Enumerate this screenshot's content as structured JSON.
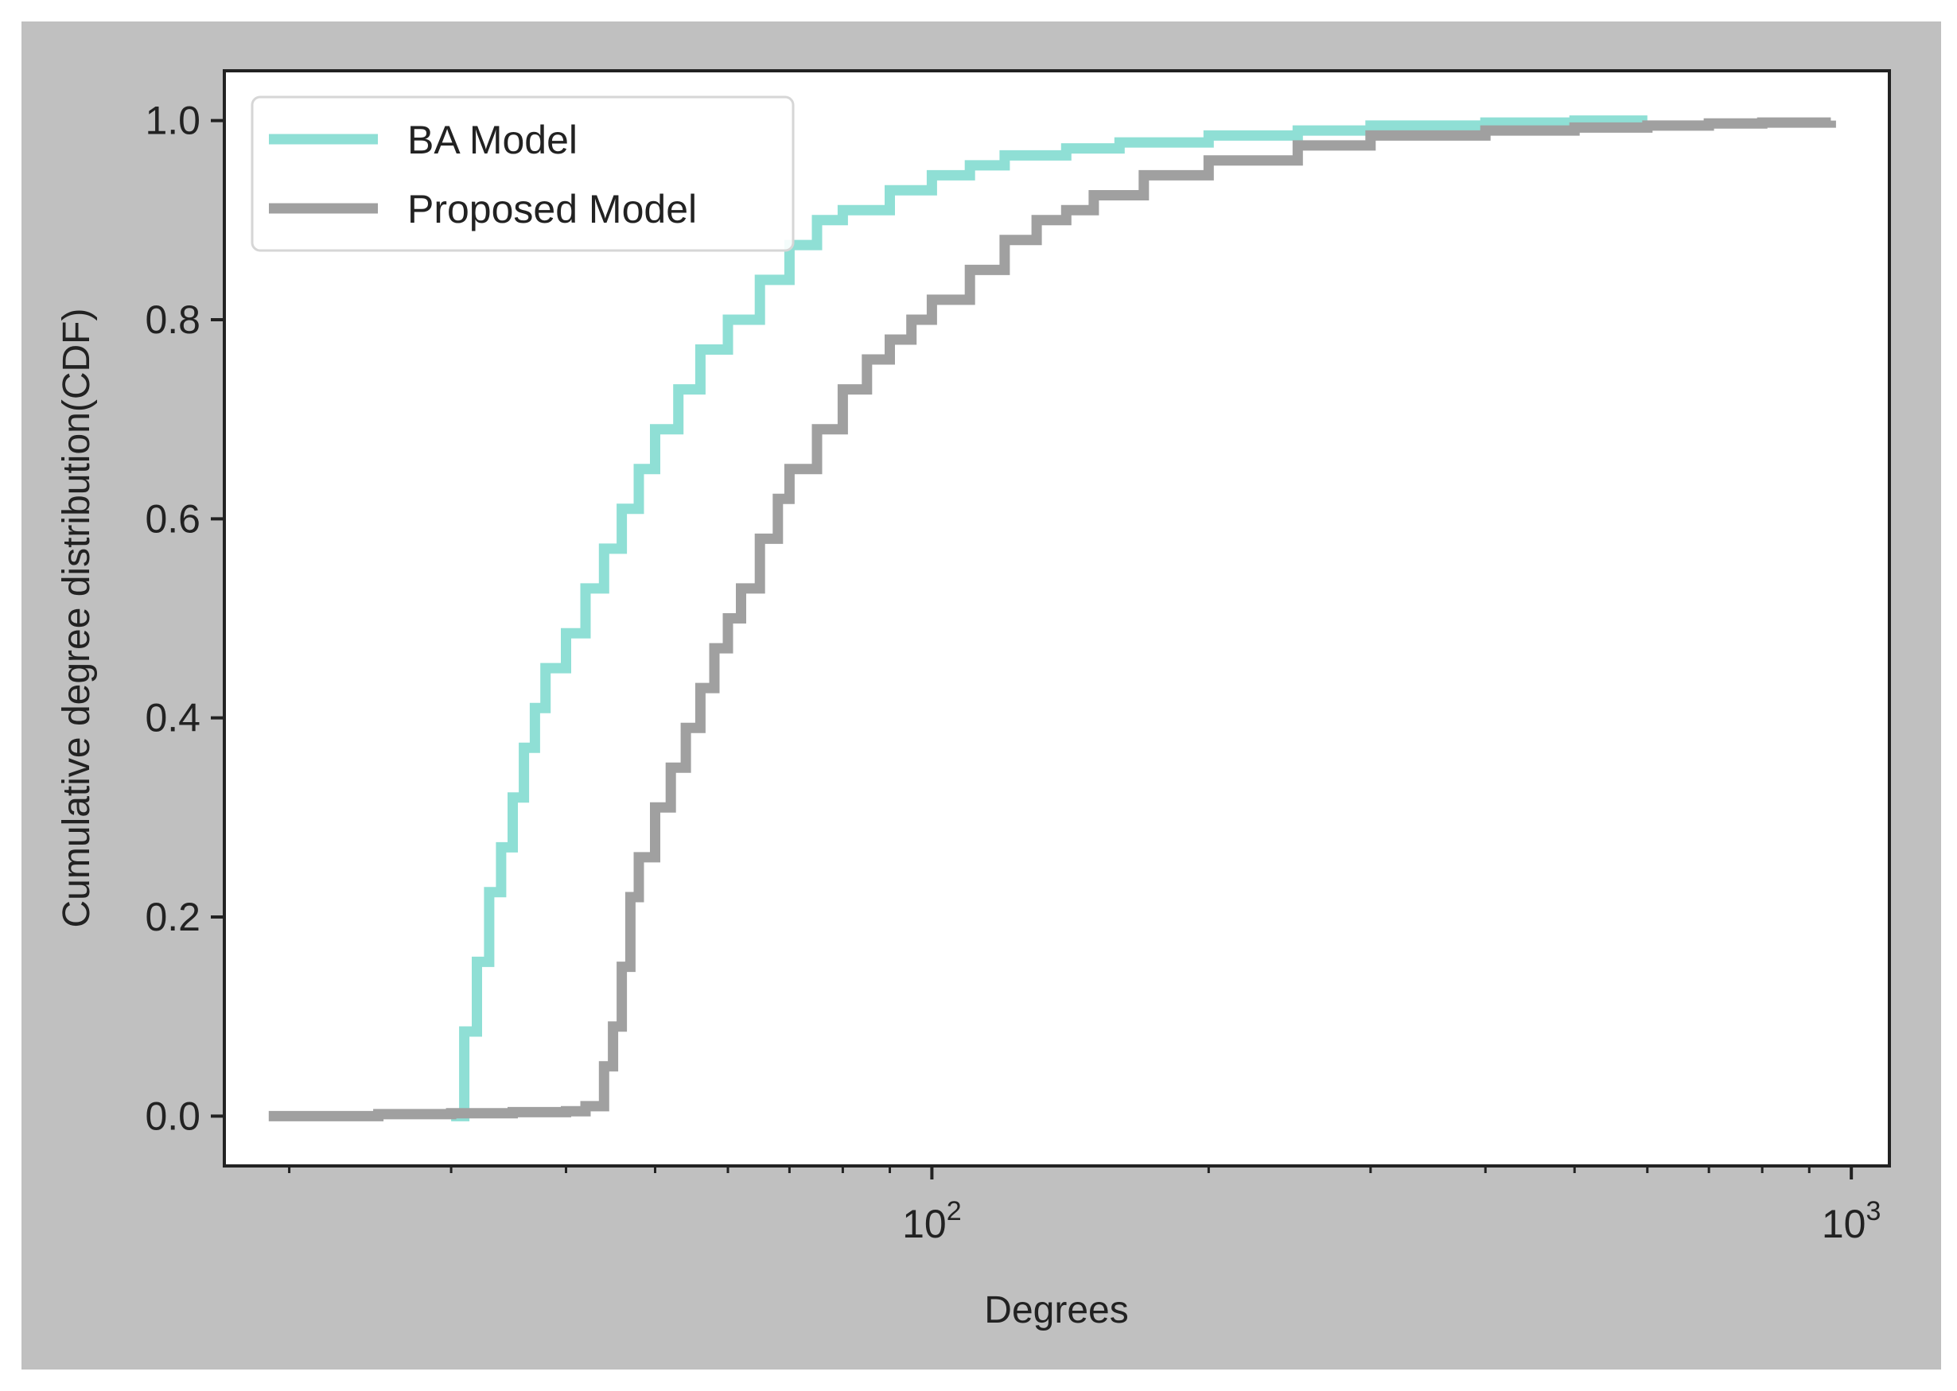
{
  "chart_data": {
    "type": "line",
    "xscale": "log",
    "xlabel": "Degrees",
    "ylabel": "Cumulative degree distribution(CDF)",
    "xlim": [
      17,
      1100
    ],
    "ylim": [
      -0.05,
      1.05
    ],
    "grid": false,
    "legend": {
      "position": "top-left",
      "entries": [
        "BA Model",
        "Proposed Model"
      ]
    },
    "x_ticks": [
      {
        "value": 100,
        "base": "10",
        "exp": "2"
      },
      {
        "value": 1000,
        "base": "10",
        "exp": "3"
      }
    ],
    "y_ticks": [
      {
        "value": 0.0,
        "label": "0.0"
      },
      {
        "value": 0.2,
        "label": "0.2"
      },
      {
        "value": 0.4,
        "label": "0.4"
      },
      {
        "value": 0.6,
        "label": "0.6"
      },
      {
        "value": 0.8,
        "label": "0.8"
      },
      {
        "value": 1.0,
        "label": "1.0"
      }
    ],
    "series": [
      {
        "name": "BA Model",
        "color": "#8fdfd5",
        "drawstyle": "steps",
        "x": [
          30,
          31,
          32,
          33,
          34,
          35,
          36,
          37,
          38,
          40,
          42,
          44,
          46,
          48,
          50,
          53,
          56,
          60,
          65,
          70,
          75,
          80,
          90,
          100,
          110,
          120,
          140,
          160,
          200,
          250,
          300,
          400,
          500,
          600
        ],
        "y": [
          0.0,
          0.085,
          0.155,
          0.225,
          0.27,
          0.32,
          0.37,
          0.41,
          0.45,
          0.485,
          0.53,
          0.57,
          0.61,
          0.65,
          0.69,
          0.73,
          0.77,
          0.8,
          0.84,
          0.875,
          0.9,
          0.91,
          0.93,
          0.945,
          0.955,
          0.965,
          0.972,
          0.978,
          0.985,
          0.99,
          0.995,
          0.998,
          1.0,
          1.0
        ]
      },
      {
        "name": "Proposed Model",
        "color": "#a0a0a0",
        "drawstyle": "steps",
        "x": [
          19,
          22,
          25,
          30,
          35,
          40,
          42,
          44,
          45,
          46,
          47,
          48,
          50,
          52,
          54,
          56,
          58,
          60,
          62,
          65,
          68,
          70,
          75,
          80,
          85,
          90,
          95,
          100,
          110,
          120,
          130,
          140,
          150,
          170,
          200,
          250,
          300,
          400,
          500,
          600,
          700,
          800,
          950
        ],
        "y": [
          0.0,
          0.0,
          0.002,
          0.003,
          0.004,
          0.005,
          0.01,
          0.05,
          0.09,
          0.15,
          0.22,
          0.26,
          0.31,
          0.35,
          0.39,
          0.43,
          0.47,
          0.5,
          0.53,
          0.58,
          0.62,
          0.65,
          0.69,
          0.73,
          0.76,
          0.78,
          0.8,
          0.82,
          0.85,
          0.88,
          0.9,
          0.91,
          0.925,
          0.945,
          0.96,
          0.975,
          0.985,
          0.99,
          0.993,
          0.995,
          0.997,
          0.998,
          1.0
        ]
      }
    ]
  }
}
